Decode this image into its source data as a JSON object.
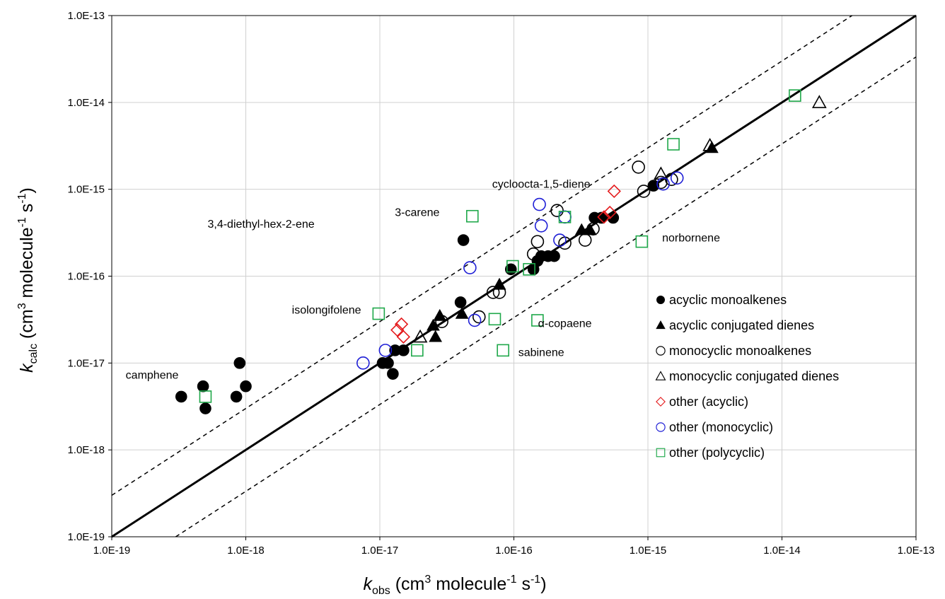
{
  "chart_data": {
    "type": "scatter",
    "x_scale": "log",
    "y_scale": "log",
    "xlim": [
      1e-19,
      1e-13
    ],
    "ylim": [
      1e-19,
      1e-13
    ],
    "x_ticks": [
      {
        "value": 1e-19,
        "label": "1.0E-19"
      },
      {
        "value": 1e-18,
        "label": "1.0E-18"
      },
      {
        "value": 1e-17,
        "label": "1.0E-17"
      },
      {
        "value": 1e-16,
        "label": "1.0E-16"
      },
      {
        "value": 1e-15,
        "label": "1.0E-15"
      },
      {
        "value": 1e-14,
        "label": "1.0E-14"
      },
      {
        "value": 1e-13,
        "label": "1.0E-13"
      }
    ],
    "y_ticks": [
      {
        "value": 1e-19,
        "label": "1.0E-19"
      },
      {
        "value": 1e-18,
        "label": "1.0E-18"
      },
      {
        "value": 1e-17,
        "label": "1.0E-17"
      },
      {
        "value": 1e-16,
        "label": "1.0E-16"
      },
      {
        "value": 1e-15,
        "label": "1.0E-15"
      },
      {
        "value": 1e-14,
        "label": "1.0E-14"
      },
      {
        "value": 1e-13,
        "label": "1.0E-13"
      }
    ],
    "xlabel": {
      "italic": "k",
      "sub": "obs",
      "main": " (cm",
      "sup1": "3",
      "mid": " molecule",
      "sup2": "-1",
      "end": " s",
      "sup3": "-1",
      "close": ")"
    },
    "ylabel": {
      "italic": "k",
      "sub": "calc",
      "main": " (cm",
      "sup1": "3",
      "mid": " molecule",
      "sup2": "-1",
      "end": " s",
      "sup3": "-1",
      "close": ")"
    },
    "grid": true,
    "legend_position": "lower-right",
    "reference_lines": [
      {
        "type": "y=x",
        "factor": 1,
        "style": "solid"
      },
      {
        "type": "y=x",
        "factor": 3,
        "style": "dashed"
      },
      {
        "type": "y=x",
        "factor": 0.3333,
        "style": "dashed"
      }
    ],
    "series": [
      {
        "name": "acyclic monoalkenes",
        "marker": "circle",
        "filled": true,
        "color": "#000000",
        "points": [
          [
            4.2e-17,
            2.6e-16
          ],
          [
            3.3e-19,
            4.1e-18
          ],
          [
            4.8e-19,
            5.4e-18
          ],
          [
            5e-19,
            3e-18
          ],
          [
            8.5e-19,
            4.1e-18
          ],
          [
            9e-19,
            1e-17
          ],
          [
            1e-18,
            5.4e-18
          ],
          [
            1.05e-17,
            1e-17
          ],
          [
            1.15e-17,
            1e-17
          ],
          [
            1.25e-17,
            7.5e-18
          ],
          [
            1.3e-17,
            1.4e-17
          ],
          [
            1.5e-17,
            1.4e-17
          ],
          [
            4e-17,
            5e-17
          ],
          [
            9.5e-17,
            1.2e-16
          ],
          [
            1.4e-16,
            1.2e-16
          ],
          [
            1.6e-16,
            1.7e-16
          ],
          [
            1.8e-16,
            1.7e-16
          ],
          [
            2e-16,
            1.7e-16
          ],
          [
            1.5e-16,
            1.5e-16
          ],
          [
            4e-16,
            4.7e-16
          ],
          [
            4.5e-16,
            4.7e-16
          ],
          [
            5.5e-16,
            4.7e-16
          ],
          [
            1.1e-15,
            1.1e-15
          ]
        ]
      },
      {
        "name": "acyclic conjugated dienes",
        "marker": "triangle",
        "filled": true,
        "color": "#000000",
        "points": [
          [
            2.5e-17,
            2.7e-17
          ],
          [
            2.6e-17,
            2e-17
          ],
          [
            2.8e-17,
            3.5e-17
          ],
          [
            4.1e-17,
            3.7e-17
          ],
          [
            7.8e-17,
            8e-17
          ],
          [
            3.2e-16,
            3.4e-16
          ],
          [
            3.7e-16,
            3.4e-16
          ],
          [
            3e-15,
            3e-15
          ]
        ]
      },
      {
        "name": "monocyclic monoalkenes",
        "marker": "circle",
        "filled": false,
        "color": "#000000",
        "points": [
          [
            2.9e-17,
            3e-17
          ],
          [
            5.5e-17,
            3.4e-17
          ],
          [
            7e-17,
            6.5e-17
          ],
          [
            7.8e-17,
            6.5e-17
          ],
          [
            1.4e-16,
            1.8e-16
          ],
          [
            1.5e-16,
            2.5e-16
          ],
          [
            2.1e-16,
            5.7e-16
          ],
          [
            2.4e-16,
            2.4e-16
          ],
          [
            3.4e-16,
            2.6e-16
          ],
          [
            3.9e-16,
            3.5e-16
          ],
          [
            8.5e-16,
            1.8e-15
          ],
          [
            9.3e-16,
            9.5e-16
          ],
          [
            1.25e-15,
            1.2e-15
          ],
          [
            1.5e-15,
            1.3e-15
          ]
        ]
      },
      {
        "name": "monocyclic conjugated dienes",
        "marker": "triangle",
        "filled": false,
        "color": "#000000",
        "points": [
          [
            2e-17,
            2e-17
          ],
          [
            1.25e-15,
            1.5e-15
          ],
          [
            2.9e-15,
            3.2e-15
          ],
          [
            1.9e-14,
            1e-14
          ]
        ]
      },
      {
        "name": "other (acyclic)",
        "marker": "diamond",
        "filled": false,
        "color": "#e41a1c",
        "points": [
          [
            1.35e-17,
            2.4e-17
          ],
          [
            1.45e-17,
            2.8e-17
          ],
          [
            1.5e-17,
            2e-17
          ],
          [
            4.7e-16,
            4.8e-16
          ],
          [
            5.2e-16,
            5.4e-16
          ],
          [
            5.6e-16,
            9.5e-16
          ]
        ]
      },
      {
        "name": "other (monocyclic)",
        "marker": "circle",
        "filled": false,
        "color": "#1f1fd6",
        "points": [
          [
            7.5e-18,
            1e-17
          ],
          [
            1.1e-17,
            1.4e-17
          ],
          [
            4.7e-17,
            1.25e-16
          ],
          [
            5.1e-17,
            3.1e-17
          ],
          [
            1.55e-16,
            6.7e-16
          ],
          [
            1.6e-16,
            3.8e-16
          ],
          [
            2.2e-16,
            2.6e-16
          ],
          [
            2.4e-16,
            4.8e-16
          ],
          [
            1.3e-15,
            1.15e-15
          ],
          [
            1.65e-15,
            1.35e-15
          ]
        ]
      },
      {
        "name": "other (polycyclic)",
        "marker": "square",
        "filled": false,
        "color": "#1fa84a",
        "points": [
          [
            5e-19,
            4.1e-18
          ],
          [
            9.8e-18,
            3.7e-17
          ],
          [
            1.9e-17,
            1.4e-17
          ],
          [
            4.9e-17,
            4.9e-16
          ],
          [
            7.2e-17,
            3.2e-17
          ],
          [
            8.3e-17,
            1.4e-17
          ],
          [
            9.8e-17,
            1.3e-16
          ],
          [
            1.3e-16,
            1.2e-16
          ],
          [
            1.5e-16,
            3.1e-17
          ],
          [
            2.4e-16,
            4.8e-16
          ],
          [
            9e-16,
            2.5e-16
          ],
          [
            1.55e-15,
            3.3e-15
          ],
          [
            1.25e-14,
            1.2e-14
          ]
        ]
      }
    ],
    "annotations": [
      {
        "text": "3,4-diethyl-hex-2-ene",
        "x": 1.3e-18,
        "y": 3.6e-16,
        "anchor": "middle"
      },
      {
        "text": "camphene",
        "x": 2e-19,
        "y": 6.6e-18,
        "anchor": "middle"
      },
      {
        "text": "isolongifolene",
        "x": 4e-18,
        "y": 3.7e-17,
        "anchor": "middle"
      },
      {
        "text": "3-carene",
        "x": 1.9e-17,
        "y": 4.9e-16,
        "anchor": "middle"
      },
      {
        "text": "cycloocta-1,5-diene",
        "x": 1.6e-16,
        "y": 1.04e-15,
        "anchor": "middle"
      },
      {
        "text": "norbornene",
        "x": 2.1e-15,
        "y": 2.5e-16,
        "anchor": "middle"
      },
      {
        "text": "α-copaene",
        "x": 2.4e-16,
        "y": 2.6e-17,
        "anchor": "middle"
      },
      {
        "text": "sabinene",
        "x": 1.6e-16,
        "y": 1.2e-17,
        "anchor": "middle"
      }
    ]
  }
}
